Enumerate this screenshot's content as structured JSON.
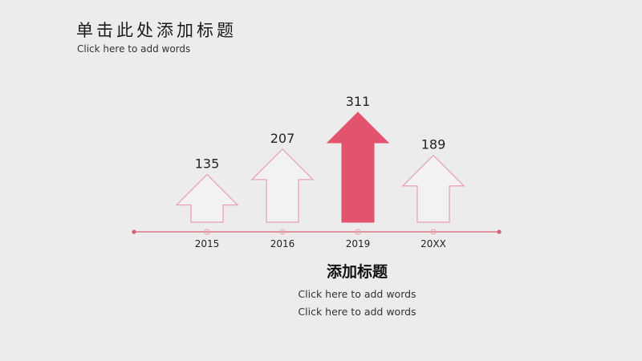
{
  "header": {
    "title": "单击此处添加标题",
    "subtitle": "Click here to add words"
  },
  "chart_data": {
    "type": "bar",
    "style": "arrows",
    "categories": [
      "2015",
      "2016",
      "2019",
      "20XX"
    ],
    "values": [
      135,
      207,
      311,
      189
    ],
    "highlight_index": 2,
    "highlight_color": "#e2536e",
    "outline_color": "#e6a0ae",
    "axis_color": "#d9607a",
    "ylim": [
      0,
      311
    ]
  },
  "text_block": {
    "title": "添加标题",
    "line1": "Click here to add words",
    "line2": "Click here to add words"
  }
}
